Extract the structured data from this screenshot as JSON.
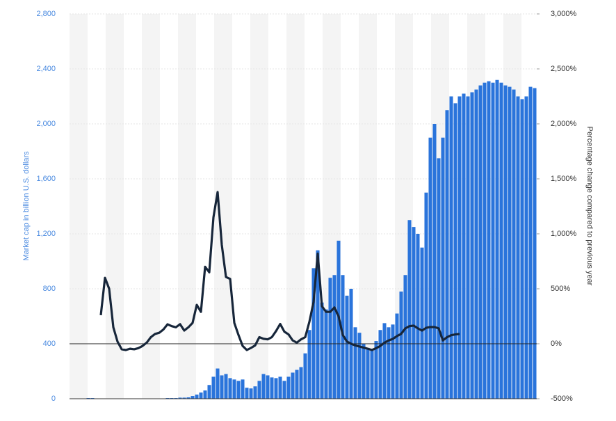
{
  "chart_data": {
    "type": "bar_line",
    "y_label": "Market cap in billion U.S. dollars",
    "y2_label": "Percentage change compared to previous year",
    "categories": [
      null,
      null,
      null,
      null,
      null,
      null,
      null,
      null,
      null,
      null,
      null,
      null,
      null,
      null,
      null,
      null,
      null,
      null,
      null,
      null,
      null,
      null,
      null,
      null,
      null,
      null,
      null,
      null,
      null,
      null,
      null,
      null,
      null,
      null,
      null,
      null,
      null,
      null,
      null,
      null,
      null,
      null,
      null,
      null,
      null,
      null,
      null,
      null,
      null,
      null,
      null,
      null,
      null,
      null,
      null,
      null,
      null,
      null,
      null,
      null,
      null,
      null,
      null,
      null,
      null,
      null,
      null,
      null,
      null,
      null,
      null,
      null,
      null,
      null,
      null,
      null,
      null,
      null,
      null,
      null,
      null,
      null,
      null,
      null,
      null,
      null,
      null,
      null,
      null,
      null,
      null,
      null,
      null,
      null,
      null,
      null,
      null,
      null,
      null,
      null,
      null,
      null,
      null,
      null,
      null,
      null,
      null,
      null,
      null,
      null,
      null,
      null
    ],
    "series": [
      {
        "type": "bar",
        "color": "#2a74db",
        "values": [
          0,
          0,
          0,
          0,
          5,
          5,
          0,
          0,
          0,
          0,
          0,
          0,
          0,
          0,
          0,
          0,
          0,
          0,
          0,
          0,
          0,
          0,
          0,
          5,
          5,
          5,
          8,
          8,
          10,
          20,
          30,
          45,
          60,
          100,
          160,
          220,
          170,
          180,
          150,
          140,
          130,
          140,
          80,
          75,
          90,
          130,
          180,
          170,
          155,
          150,
          160,
          130,
          160,
          190,
          210,
          230,
          330,
          500,
          950,
          1080,
          700,
          650,
          880,
          900,
          1150,
          900,
          750,
          800,
          520,
          480,
          400,
          370,
          350,
          420,
          500,
          550,
          520,
          540,
          620,
          780,
          900,
          1300,
          1250,
          1200,
          1100,
          1500,
          1900,
          2000,
          1750,
          1900,
          2100,
          2200,
          2150,
          2200,
          2220,
          2200,
          2230,
          2250,
          2280,
          2300,
          2310,
          2300,
          2320,
          2300,
          2280,
          2270,
          2250,
          2200,
          2180,
          2200,
          2270,
          2260
        ]
      },
      {
        "type": "line",
        "axis": "y2",
        "color": "#17263a",
        "values": [
          null,
          null,
          null,
          null,
          null,
          null,
          null,
          260,
          600,
          500,
          150,
          20,
          -50,
          -57,
          -45,
          -50,
          -40,
          -20,
          10,
          60,
          89,
          100,
          130,
          177,
          160,
          150,
          178,
          120,
          150,
          190,
          354,
          290,
          700,
          650,
          1150,
          1380,
          900,
          607,
          590,
          190,
          80,
          -20,
          -57,
          -38,
          -15,
          60,
          45,
          40,
          60,
          115,
          180,
          110,
          85,
          30,
          10,
          40,
          60,
          200,
          380,
          820,
          342,
          290,
          290,
          330,
          250,
          80,
          20,
          0,
          -15,
          -25,
          -35,
          -45,
          -57,
          -40,
          -20,
          10,
          30,
          44,
          70,
          90,
          140,
          160,
          165,
          140,
          120,
          145,
          152,
          152,
          140,
          30,
          60,
          78,
          85,
          89,
          null,
          null,
          null,
          null,
          null,
          null,
          null,
          null,
          null,
          null,
          null,
          null,
          null,
          null,
          null,
          null,
          null,
          null
        ]
      }
    ],
    "ylim": [
      0,
      2800
    ],
    "yticks": [
      0,
      400,
      800,
      {
        "value": 1200,
        "label": "1,200"
      },
      {
        "value": 1600,
        "label": "1,600"
      },
      {
        "value": 2000,
        "label": "2,000"
      },
      {
        "value": 2400,
        "label": "2,400"
      },
      {
        "value": 2800,
        "label": "2,800"
      }
    ],
    "y2lim": [
      -500,
      3000
    ],
    "y2ticks": [
      {
        "value": -500,
        "label": "-500%"
      },
      {
        "value": 0,
        "label": "0%"
      },
      {
        "value": 500,
        "label": "500%"
      },
      {
        "value": 1000,
        "label": "1,000%"
      },
      {
        "value": 1500,
        "label": "1,500%"
      },
      {
        "value": 2000,
        "label": "2,000%"
      },
      {
        "value": 2500,
        "label": "2,500%"
      },
      {
        "value": 3000,
        "label": "3,000%"
      }
    ],
    "grid": true
  }
}
